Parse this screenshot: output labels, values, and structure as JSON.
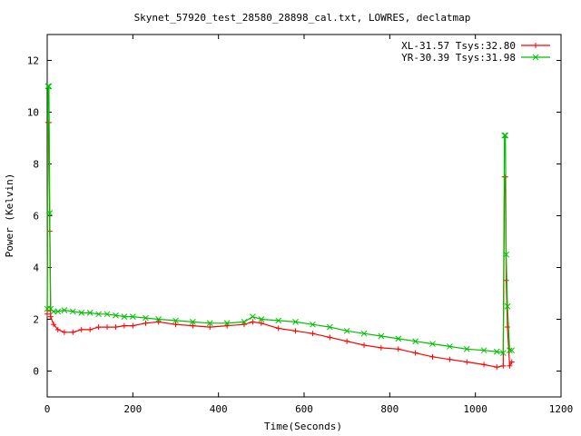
{
  "chart_data": {
    "type": "line",
    "title": "Skynet_57920_test_28580_28898_cal.txt, LOWRES, declatmap",
    "xlabel": "Time(Seconds)",
    "ylabel": "Power (Kelvin)",
    "xlim": [
      0,
      1200
    ],
    "ylim": [
      -1,
      13
    ],
    "xticks": [
      0,
      200,
      400,
      600,
      800,
      1000,
      1200
    ],
    "yticks": [
      0,
      2,
      4,
      6,
      8,
      10,
      12
    ],
    "grid": false,
    "legend_position": "top-right",
    "series": [
      {
        "name": "XL-31.57 Tsys:32.80",
        "color": "#ff0000",
        "marker": "plus",
        "x": [
          0,
          2,
          4,
          6,
          8,
          15,
          25,
          40,
          60,
          80,
          100,
          120,
          140,
          160,
          180,
          200,
          230,
          260,
          300,
          340,
          380,
          420,
          460,
          480,
          500,
          540,
          580,
          620,
          660,
          700,
          740,
          780,
          820,
          860,
          900,
          940,
          980,
          1020,
          1050,
          1065,
          1068,
          1070,
          1072,
          1075,
          1080,
          1085
        ],
        "y": [
          2.2,
          9.6,
          9.6,
          5.4,
          2.1,
          1.8,
          1.6,
          1.5,
          1.5,
          1.6,
          1.6,
          1.7,
          1.7,
          1.7,
          1.75,
          1.75,
          1.85,
          1.9,
          1.8,
          1.75,
          1.7,
          1.75,
          1.8,
          1.9,
          1.85,
          1.65,
          1.55,
          1.45,
          1.3,
          1.15,
          1.0,
          0.9,
          0.85,
          0.7,
          0.55,
          0.45,
          0.35,
          0.25,
          0.15,
          0.2,
          7.5,
          7.5,
          3.5,
          1.7,
          0.2,
          0.35
        ]
      },
      {
        "name": "YR-30.39 Tsys:31.98",
        "color": "#00c000",
        "marker": "x",
        "x": [
          0,
          2,
          4,
          6,
          8,
          15,
          25,
          40,
          60,
          80,
          100,
          120,
          140,
          160,
          180,
          200,
          230,
          260,
          300,
          340,
          380,
          420,
          460,
          480,
          500,
          540,
          580,
          620,
          660,
          700,
          740,
          780,
          820,
          860,
          900,
          940,
          980,
          1020,
          1050,
          1065,
          1068,
          1070,
          1072,
          1075,
          1080,
          1085
        ],
        "y": [
          2.4,
          11.0,
          11.0,
          6.1,
          2.4,
          2.3,
          2.3,
          2.35,
          2.3,
          2.25,
          2.25,
          2.2,
          2.2,
          2.15,
          2.1,
          2.1,
          2.05,
          2.0,
          1.95,
          1.9,
          1.85,
          1.85,
          1.9,
          2.1,
          2.0,
          1.95,
          1.9,
          1.8,
          1.7,
          1.55,
          1.45,
          1.35,
          1.25,
          1.15,
          1.05,
          0.95,
          0.85,
          0.8,
          0.75,
          0.7,
          9.1,
          9.1,
          4.5,
          2.5,
          0.8,
          0.8
        ]
      }
    ]
  }
}
